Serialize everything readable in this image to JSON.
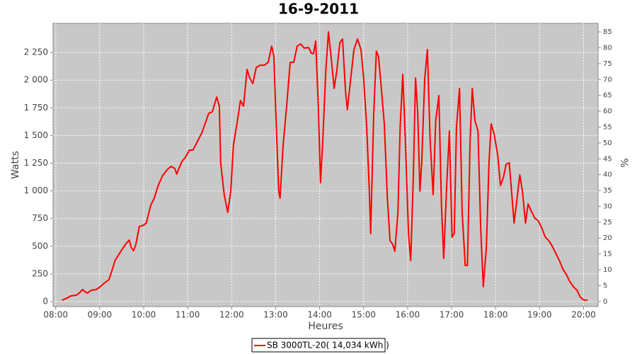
{
  "chart_data": {
    "type": "line",
    "title": "16-9-2011",
    "x_label": "Heures",
    "y_label": "Watts",
    "y2_label": "%",
    "x": [
      8.14,
      8.26,
      8.34,
      8.47,
      8.55,
      8.61,
      8.66,
      8.72,
      8.81,
      8.92,
      9.01,
      9.1,
      9.21,
      9.27,
      9.35,
      9.43,
      9.51,
      9.59,
      9.67,
      9.72,
      9.77,
      9.82,
      9.9,
      10.0,
      10.06,
      10.16,
      10.24,
      10.33,
      10.43,
      10.53,
      10.62,
      10.71,
      10.75,
      10.8,
      10.87,
      10.95,
      11.04,
      11.12,
      11.22,
      11.32,
      11.4,
      11.48,
      11.56,
      11.66,
      11.72,
      11.75,
      11.83,
      11.91,
      11.98,
      12.04,
      12.12,
      12.2,
      12.27,
      12.35,
      12.41,
      12.48,
      12.56,
      12.65,
      12.75,
      12.83,
      12.91,
      12.96,
      13.01,
      13.07,
      13.1,
      13.17,
      13.25,
      13.33,
      13.41,
      13.49,
      13.57,
      13.65,
      13.75,
      13.81,
      13.86,
      13.91,
      13.97,
      14.02,
      14.07,
      14.14,
      14.2,
      14.26,
      14.33,
      14.39,
      14.46,
      14.52,
      14.59,
      14.63,
      14.7,
      14.78,
      14.86,
      14.94,
      15.0,
      15.07,
      15.13,
      15.16,
      15.23,
      15.29,
      15.34,
      15.41,
      15.47,
      15.54,
      15.6,
      15.66,
      15.71,
      15.78,
      15.83,
      15.89,
      15.95,
      16.02,
      16.07,
      16.13,
      16.18,
      16.23,
      16.28,
      16.32,
      16.39,
      16.45,
      16.51,
      16.58,
      16.64,
      16.71,
      16.77,
      16.82,
      16.89,
      16.95,
      17.01,
      17.06,
      17.11,
      17.18,
      17.24,
      17.31,
      17.36,
      17.42,
      17.47,
      17.53,
      17.6,
      17.66,
      17.72,
      17.79,
      17.85,
      17.9,
      17.97,
      18.05,
      18.11,
      18.18,
      18.24,
      18.31,
      18.35,
      18.42,
      18.48,
      18.55,
      18.61,
      18.68,
      18.74,
      18.81,
      18.89,
      18.97,
      19.05,
      19.13,
      19.21,
      19.29,
      19.37,
      19.45,
      19.53,
      19.61,
      19.69,
      19.77,
      19.85,
      19.93,
      20.01,
      20.09
    ],
    "series": [
      {
        "name": "SB 3000TL-20( 14,034 kWh  )",
        "color": "#ff0000",
        "values": [
          13,
          32,
          51,
          58,
          83,
          109,
          90,
          77,
          102,
          109,
          134,
          166,
          198,
          269,
          371,
          422,
          473,
          518,
          556,
          486,
          460,
          512,
          678,
          691,
          710,
          870,
          934,
          1049,
          1138,
          1189,
          1221,
          1202,
          1151,
          1202,
          1266,
          1304,
          1368,
          1368,
          1445,
          1522,
          1611,
          1701,
          1714,
          1848,
          1765,
          1253,
          966,
          806,
          997,
          1413,
          1605,
          1816,
          1765,
          2097,
          2020,
          1969,
          2116,
          2136,
          2136,
          2161,
          2308,
          2212,
          1637,
          997,
          934,
          1413,
          1765,
          2161,
          2161,
          2308,
          2327,
          2289,
          2295,
          2244,
          2238,
          2353,
          1765,
          1074,
          1445,
          2084,
          2436,
          2212,
          1925,
          2084,
          2340,
          2372,
          1893,
          1733,
          1989,
          2276,
          2372,
          2276,
          2020,
          1573,
          997,
          614,
          1701,
          2263,
          2212,
          1893,
          1605,
          934,
          550,
          518,
          454,
          806,
          1573,
          2052,
          1445,
          614,
          371,
          1125,
          2020,
          1701,
          997,
          1253,
          2020,
          2276,
          1477,
          966,
          1637,
          1861,
          870,
          390,
          1061,
          1541,
          582,
          614,
          1573,
          1925,
          806,
          326,
          326,
          1445,
          1925,
          1637,
          1541,
          678,
          134,
          486,
          1253,
          1605,
          1509,
          1317,
          1049,
          1125,
          1240,
          1253,
          1061,
          710,
          902,
          1145,
          997,
          710,
          882,
          818,
          755,
          729,
          665,
          582,
          550,
          499,
          435,
          371,
          294,
          243,
          179,
          134,
          102,
          38,
          13,
          13
        ]
      }
    ],
    "xlim": [
      7.94,
      20.33
    ],
    "xticks": [
      {
        "value": 8,
        "label": "08:00"
      },
      {
        "value": 9,
        "label": "09:00"
      },
      {
        "value": 10,
        "label": "10:00"
      },
      {
        "value": 11,
        "label": "11:00"
      },
      {
        "value": 12,
        "label": "12:00"
      },
      {
        "value": 13,
        "label": "13:00"
      },
      {
        "value": 14,
        "label": "14:00"
      },
      {
        "value": 15,
        "label": "15:00"
      },
      {
        "value": 16,
        "label": "16:00"
      },
      {
        "value": 17,
        "label": "17:00"
      },
      {
        "value": 18,
        "label": "18:00"
      },
      {
        "value": 19,
        "label": "19:00"
      },
      {
        "value": 20,
        "label": "20:00"
      }
    ],
    "ylim": [
      -45,
      2513
    ],
    "yticks": [
      0,
      250,
      500,
      750,
      {
        "value": 1000,
        "label": "1 000"
      },
      {
        "value": 1250,
        "label": "1 250"
      },
      {
        "value": 1500,
        "label": "1 500"
      },
      {
        "value": 1750,
        "label": "1 750"
      },
      {
        "value": 2000,
        "label": "2 000"
      },
      {
        "value": 2250,
        "label": "2 250"
      }
    ],
    "y2lim": [
      -1.6,
      87.7
    ],
    "y2ticks": [
      0,
      5,
      10,
      15,
      20,
      25,
      30,
      35,
      40,
      45,
      50,
      55,
      60,
      65,
      70,
      75,
      80,
      85
    ],
    "grid": true
  }
}
